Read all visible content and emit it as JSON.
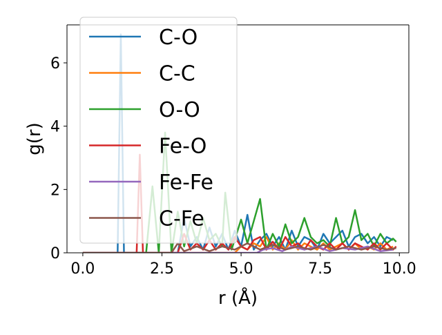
{
  "chart_data": {
    "type": "line",
    "title": "",
    "xlabel": "r (Å)",
    "ylabel": "g(r)",
    "xlim": [
      -0.5,
      10.3
    ],
    "ylim": [
      0,
      7.2
    ],
    "xticks": [
      0.0,
      2.5,
      5.0,
      7.5,
      10.0
    ],
    "xtick_labels": [
      "0.0",
      "2.5",
      "5.0",
      "7.5",
      "10.0"
    ],
    "yticks": [
      0,
      2,
      4,
      6
    ],
    "ytick_labels": [
      "0",
      "2",
      "4",
      "6"
    ],
    "grid": false,
    "legend": {
      "position": "top-left",
      "entries": [
        "C-O",
        "C-C",
        "O-O",
        "Fe-O",
        "Fe-Fe",
        "C-Fe"
      ]
    },
    "series": [
      {
        "name": "C-O",
        "color": "#1f77b4",
        "points": [
          [
            0.0,
            0
          ],
          [
            1.0,
            0
          ],
          [
            1.1,
            0
          ],
          [
            1.2,
            6.9
          ],
          [
            1.3,
            0
          ],
          [
            3.0,
            0
          ],
          [
            3.2,
            1.1
          ],
          [
            3.4,
            0.2
          ],
          [
            3.6,
            0.5
          ],
          [
            3.8,
            0.1
          ],
          [
            4.0,
            0.8
          ],
          [
            4.2,
            0.2
          ],
          [
            4.4,
            0.6
          ],
          [
            4.6,
            0.1
          ],
          [
            4.8,
            0.7
          ],
          [
            5.0,
            0.2
          ],
          [
            5.2,
            1.2
          ],
          [
            5.4,
            0.1
          ],
          [
            5.6,
            0.4
          ],
          [
            5.8,
            0.6
          ],
          [
            6.0,
            0.2
          ],
          [
            6.2,
            0.5
          ],
          [
            6.4,
            0.1
          ],
          [
            6.6,
            0.7
          ],
          [
            6.8,
            0.2
          ],
          [
            7.0,
            0.5
          ],
          [
            7.2,
            0.4
          ],
          [
            7.4,
            0.1
          ],
          [
            7.6,
            0.6
          ],
          [
            7.8,
            0.3
          ],
          [
            8.0,
            0.5
          ],
          [
            8.2,
            0.7
          ],
          [
            8.4,
            0.2
          ],
          [
            8.6,
            0.5
          ],
          [
            8.8,
            0.6
          ],
          [
            9.0,
            0.3
          ],
          [
            9.2,
            0.5
          ],
          [
            9.4,
            0.2
          ],
          [
            9.6,
            0.5
          ],
          [
            9.8,
            0.4
          ]
        ]
      },
      {
        "name": "C-C",
        "color": "#ff7f0e",
        "points": [
          [
            0.0,
            0
          ],
          [
            4.8,
            0
          ],
          [
            5.0,
            0.2
          ],
          [
            5.2,
            0.1
          ],
          [
            5.4,
            0.3
          ],
          [
            5.6,
            0.2
          ],
          [
            5.8,
            0.5
          ],
          [
            6.0,
            0.1
          ],
          [
            6.2,
            0.3
          ],
          [
            6.4,
            0.1
          ],
          [
            6.6,
            0.4
          ],
          [
            6.8,
            0.1
          ],
          [
            7.0,
            0.3
          ],
          [
            7.2,
            0.2
          ],
          [
            7.4,
            0.1
          ],
          [
            7.6,
            0.3
          ],
          [
            7.8,
            0.1
          ],
          [
            8.0,
            0.2
          ],
          [
            8.2,
            0.3
          ],
          [
            8.4,
            0.1
          ],
          [
            8.6,
            0.3
          ],
          [
            8.8,
            0.1
          ],
          [
            9.0,
            0.2
          ],
          [
            9.2,
            0.1
          ],
          [
            9.4,
            0.3
          ],
          [
            9.6,
            0.1
          ],
          [
            9.8,
            0.2
          ]
        ]
      },
      {
        "name": "O-O",
        "color": "#2ca02c",
        "points": [
          [
            0.0,
            0
          ],
          [
            2.0,
            0
          ],
          [
            2.2,
            2.1
          ],
          [
            2.4,
            0
          ],
          [
            2.6,
            3.8
          ],
          [
            2.8,
            0
          ],
          [
            3.0,
            1.3
          ],
          [
            3.2,
            0.2
          ],
          [
            3.4,
            1.0
          ],
          [
            3.6,
            0.3
          ],
          [
            3.8,
            1.1
          ],
          [
            4.0,
            0.4
          ],
          [
            4.2,
            0.6
          ],
          [
            4.4,
            0.2
          ],
          [
            4.5,
            1.9
          ],
          [
            4.7,
            0.1
          ],
          [
            5.0,
            1.05
          ],
          [
            5.2,
            0.3
          ],
          [
            5.4,
            1.0
          ],
          [
            5.6,
            1.7
          ],
          [
            5.8,
            0.1
          ],
          [
            6.0,
            0.6
          ],
          [
            6.2,
            0.2
          ],
          [
            6.4,
            0.9
          ],
          [
            6.6,
            0.3
          ],
          [
            6.8,
            0.5
          ],
          [
            7.0,
            1.1
          ],
          [
            7.2,
            0.5
          ],
          [
            7.4,
            0.3
          ],
          [
            7.6,
            0.4
          ],
          [
            7.8,
            0.2
          ],
          [
            8.0,
            1.1
          ],
          [
            8.2,
            0.3
          ],
          [
            8.4,
            0.5
          ],
          [
            8.6,
            1.35
          ],
          [
            8.8,
            0.4
          ],
          [
            9.0,
            0.6
          ],
          [
            9.2,
            0.2
          ],
          [
            9.4,
            0.6
          ],
          [
            9.6,
            0.3
          ],
          [
            9.8,
            0.45
          ],
          [
            9.9,
            0.35
          ]
        ]
      },
      {
        "name": "Fe-O",
        "color": "#d62728",
        "points": [
          [
            0.0,
            0
          ],
          [
            1.7,
            0
          ],
          [
            1.8,
            3.1
          ],
          [
            1.9,
            0
          ],
          [
            3.0,
            0
          ],
          [
            3.2,
            0.6
          ],
          [
            3.4,
            0.1
          ],
          [
            3.6,
            0.3
          ],
          [
            3.8,
            0.1
          ],
          [
            4.0,
            0.4
          ],
          [
            4.2,
            0.1
          ],
          [
            4.4,
            0.3
          ],
          [
            4.6,
            0.1
          ],
          [
            4.8,
            0.5
          ],
          [
            5.0,
            0.2
          ],
          [
            5.2,
            0.1
          ],
          [
            5.4,
            0.4
          ],
          [
            5.6,
            0.5
          ],
          [
            5.8,
            0.1
          ],
          [
            6.0,
            0.35
          ],
          [
            6.2,
            0.1
          ],
          [
            6.4,
            0.5
          ],
          [
            6.6,
            0.2
          ],
          [
            6.8,
            0.3
          ],
          [
            7.0,
            0.1
          ],
          [
            7.2,
            0.4
          ],
          [
            7.4,
            0.2
          ],
          [
            7.6,
            0.1
          ],
          [
            7.8,
            0.3
          ],
          [
            8.0,
            0.1
          ],
          [
            8.2,
            0.3
          ],
          [
            8.4,
            0.1
          ],
          [
            8.6,
            0.3
          ],
          [
            8.8,
            0.2
          ],
          [
            9.0,
            0.1
          ],
          [
            9.2,
            0.3
          ],
          [
            9.4,
            0.1
          ],
          [
            9.6,
            0.3
          ],
          [
            9.8,
            0.1
          ],
          [
            9.9,
            0.2
          ]
        ]
      },
      {
        "name": "Fe-Fe",
        "color": "#9467bd",
        "points": [
          [
            0.0,
            0
          ],
          [
            5.5,
            0
          ],
          [
            5.7,
            0.1
          ],
          [
            6.0,
            0.15
          ],
          [
            6.3,
            0.05
          ],
          [
            6.6,
            0.2
          ],
          [
            7.0,
            0.1
          ],
          [
            7.4,
            0.2
          ],
          [
            7.8,
            0.05
          ],
          [
            8.2,
            0.15
          ],
          [
            8.6,
            0.1
          ],
          [
            9.0,
            0.2
          ],
          [
            9.4,
            0.05
          ],
          [
            9.8,
            0.1
          ]
        ]
      },
      {
        "name": "C-Fe",
        "color": "#8c564b",
        "points": [
          [
            0.0,
            0
          ],
          [
            2.8,
            0
          ],
          [
            3.0,
            0.3
          ],
          [
            3.2,
            0.05
          ],
          [
            3.6,
            0.2
          ],
          [
            4.0,
            0.05
          ],
          [
            4.4,
            0.2
          ],
          [
            4.8,
            0.1
          ],
          [
            5.2,
            0.3
          ],
          [
            5.6,
            0.1
          ],
          [
            6.0,
            0.25
          ],
          [
            6.4,
            0.1
          ],
          [
            6.8,
            0.2
          ],
          [
            7.2,
            0.1
          ],
          [
            7.6,
            0.25
          ],
          [
            8.0,
            0.1
          ],
          [
            8.4,
            0.2
          ],
          [
            8.8,
            0.1
          ],
          [
            9.2,
            0.2
          ],
          [
            9.6,
            0.1
          ],
          [
            9.9,
            0.15
          ]
        ]
      }
    ]
  }
}
